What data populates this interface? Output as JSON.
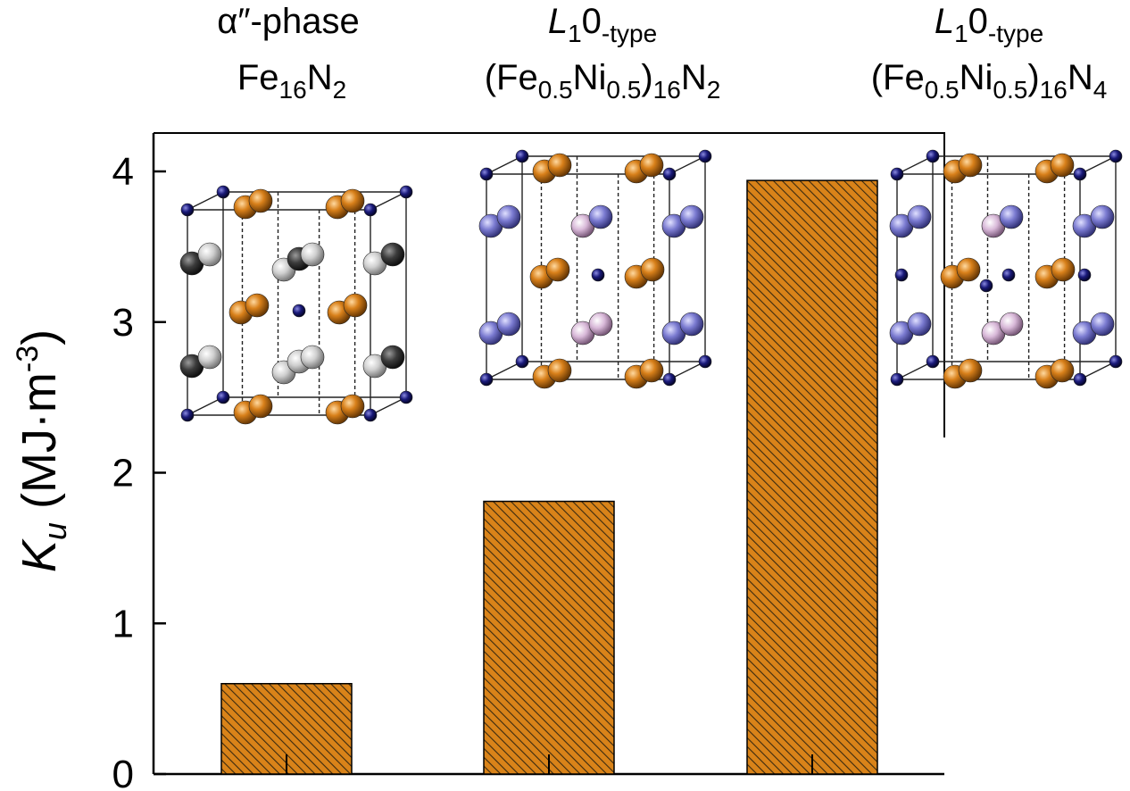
{
  "chart_data": {
    "type": "bar",
    "categories": [
      {
        "line1": [
          "",
          "α″-phase",
          ""
        ],
        "line2": [
          "Fe",
          "16",
          "N",
          "2",
          "",
          "",
          "",
          "",
          ""
        ]
      },
      {
        "line1": [
          "L",
          "1",
          "0",
          "-type"
        ],
        "line2": [
          "(Fe",
          "0.5",
          "Ni",
          "0.5",
          ")",
          "16",
          "N",
          "2"
        ]
      },
      {
        "line1": [
          "L",
          "1",
          "0",
          "-type"
        ],
        "line2": [
          "(Fe",
          "0.5",
          "Ni",
          "0.5",
          ")",
          "16",
          "N",
          "4"
        ]
      }
    ],
    "values": [
      0.6,
      1.81,
      3.94
    ],
    "ylim": [
      0,
      4.25
    ],
    "yticks": [
      "0",
      "1",
      "2",
      "3",
      "4"
    ],
    "ylabel": {
      "symbol": "K",
      "subscript": "u",
      "unit": " (MJ·m",
      "exp": "-3",
      "close": ")"
    },
    "colors": {
      "bar": "#D98319",
      "hatch": "#3a2a10",
      "axis": "#000000"
    }
  },
  "crystals": [
    {
      "name": "fe16n2-cell",
      "type": "alpha"
    },
    {
      "name": "fenin2-cell",
      "type": "l10-n2"
    },
    {
      "name": "fenin4-cell",
      "type": "l10-n4"
    }
  ],
  "atom_colors": {
    "fe": "#D8801A",
    "n": "#1a1a7a",
    "fe_dark": "#3c3c3c",
    "fe_light": "#c8c8c8",
    "ni_blue": "#7a7ad0",
    "ni_pink": "#d8b8d8"
  }
}
